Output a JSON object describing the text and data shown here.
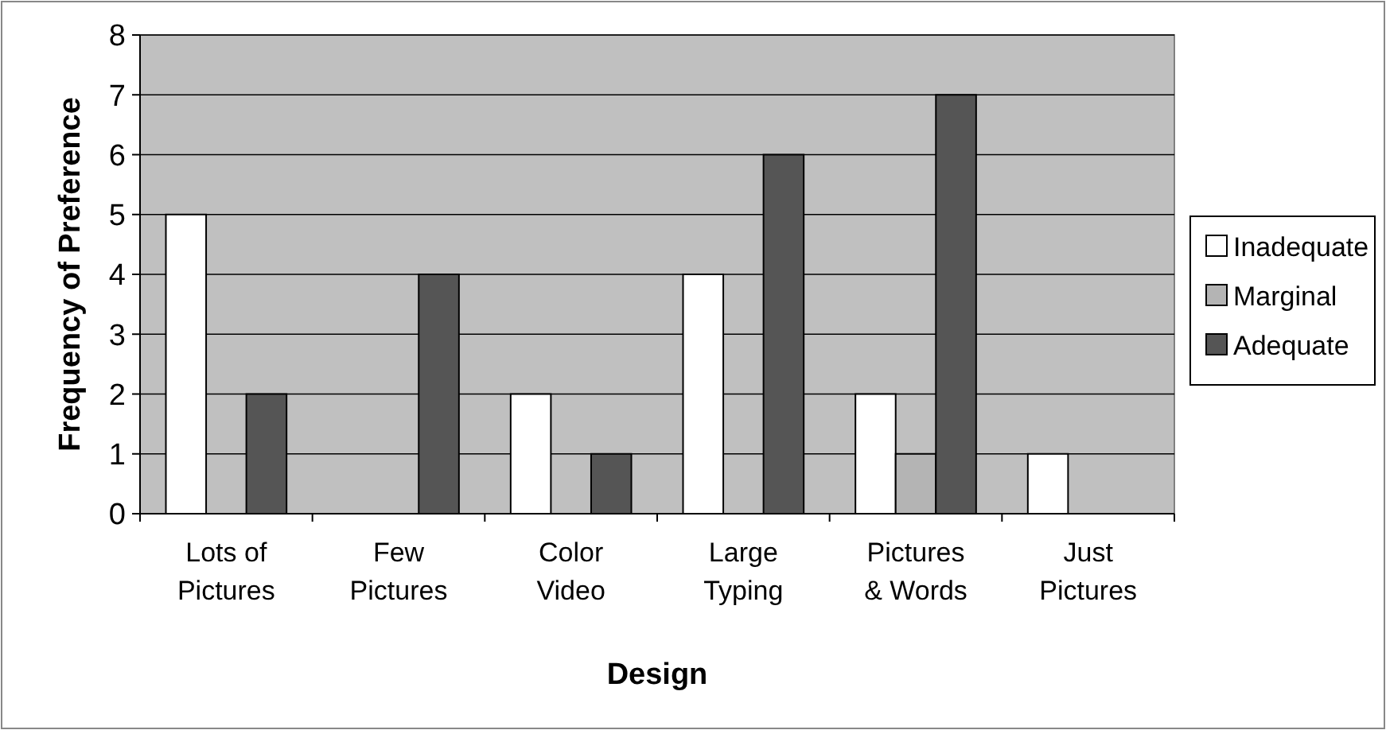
{
  "chart_data": {
    "type": "bar",
    "xlabel": "Design",
    "ylabel": "Frequency of Preference",
    "categories": [
      "Lots of Pictures",
      "Few Pictures",
      "Color Video",
      "Large Typing",
      "Pictures & Words",
      "Just Pictures"
    ],
    "series": [
      {
        "name": "Inadequate",
        "color": "#ffffff",
        "values": [
          5,
          0,
          2,
          4,
          2,
          1
        ]
      },
      {
        "name": "Marginal",
        "color": "#b4b4b4",
        "values": [
          0,
          0,
          0,
          0,
          1,
          0
        ]
      },
      {
        "name": "Adequate",
        "color": "#555555",
        "values": [
          2,
          4,
          1,
          6,
          7,
          0
        ]
      }
    ],
    "ylim": [
      0,
      8
    ],
    "yticks": [
      0,
      1,
      2,
      3,
      4,
      5,
      6,
      7,
      8
    ],
    "grid": "y",
    "legend": "right"
  }
}
